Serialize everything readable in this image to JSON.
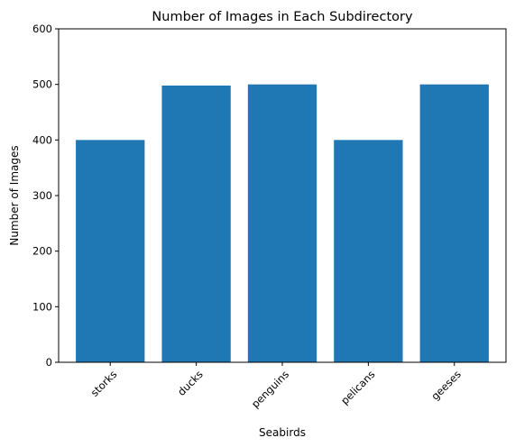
{
  "chart_data": {
    "type": "bar",
    "title": "Number of Images in Each Subdirectory",
    "xlabel": "Seabirds",
    "ylabel": "Number of Images",
    "categories": [
      "storks",
      "ducks",
      "penguins",
      "pelicans",
      "geeses"
    ],
    "values": [
      400,
      498,
      500,
      400,
      500
    ],
    "ylim": [
      0,
      600
    ],
    "yticks": [
      "0",
      "100",
      "200",
      "300",
      "400",
      "500",
      "600"
    ],
    "bar_color": "#1f77b4",
    "grid": false,
    "legend": "none"
  }
}
